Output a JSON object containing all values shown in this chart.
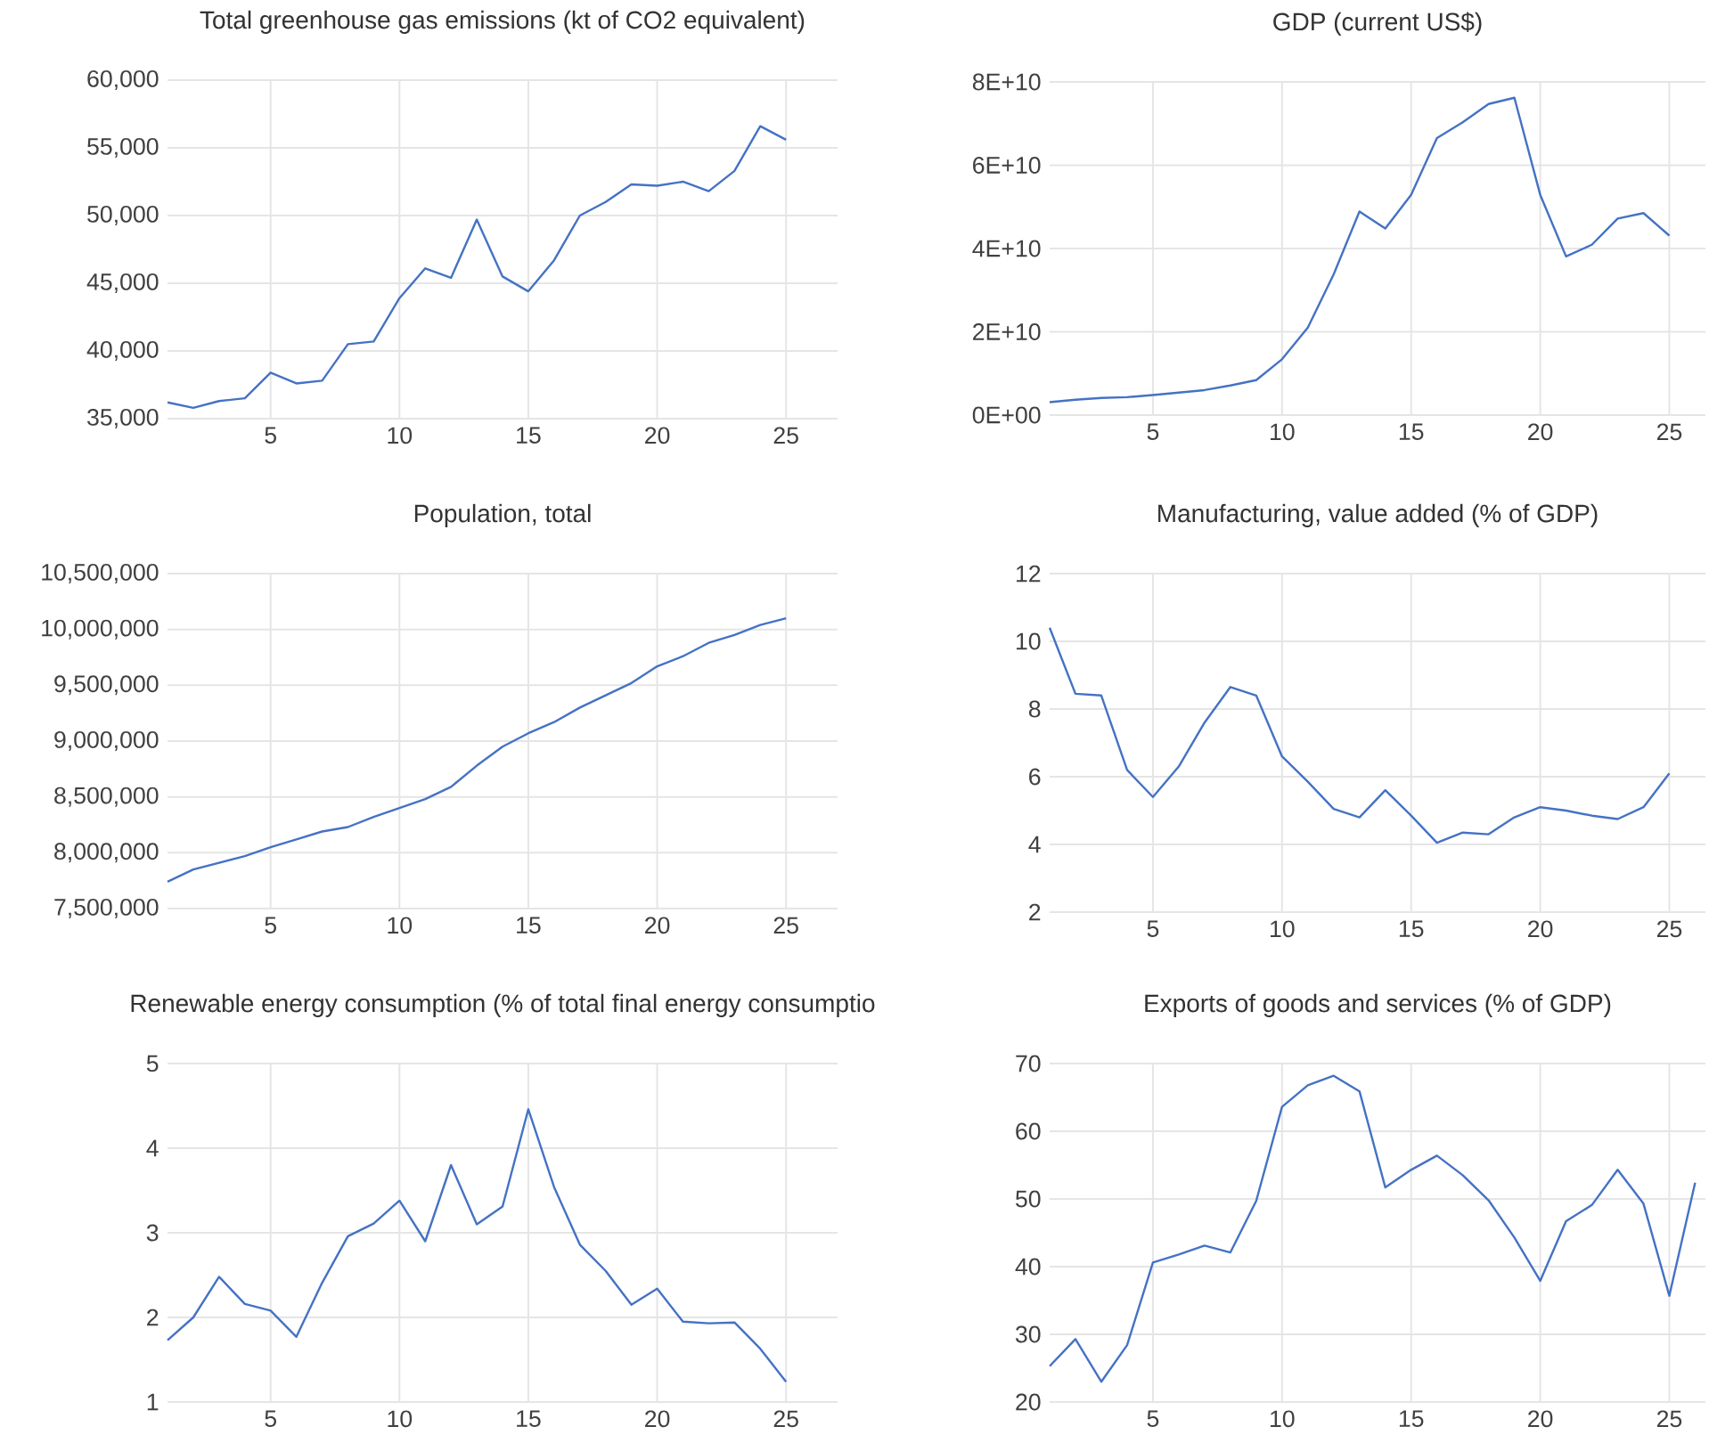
{
  "chart_data": [
    {
      "type": "line",
      "title": "Total greenhouse gas emissions (kt of CO2 equivalent)",
      "x": [
        1,
        2,
        3,
        4,
        5,
        6,
        7,
        8,
        9,
        10,
        11,
        12,
        13,
        14,
        15,
        16,
        17,
        18,
        19,
        20,
        21,
        22,
        23,
        24,
        25
      ],
      "series": [
        {
          "color": "#4472c4",
          "values": [
            36200,
            35800,
            36300,
            36500,
            38400,
            37600,
            37800,
            40500,
            40700,
            43900,
            46100,
            45400,
            49700,
            45500,
            44400,
            46700,
            50000,
            51000,
            52300,
            52200,
            52500,
            51800,
            53300,
            56600,
            55600
          ]
        }
      ],
      "xlim": [
        1,
        27
      ],
      "xticks": [
        5,
        10,
        15,
        20,
        25
      ],
      "ylim": [
        35000,
        60000
      ],
      "yticks": [
        {
          "value": 35000,
          "label": "35,000"
        },
        {
          "value": 40000,
          "label": "40,000"
        },
        {
          "value": 45000,
          "label": "45,000"
        },
        {
          "value": 50000,
          "label": "50,000"
        },
        {
          "value": 55000,
          "label": "55,000"
        },
        {
          "value": 60000,
          "label": "60,000"
        }
      ],
      "grid": true
    },
    {
      "type": "line",
      "title": "GDP (current US$)",
      "x": [
        1,
        2,
        3,
        4,
        5,
        6,
        7,
        8,
        9,
        10,
        11,
        12,
        13,
        14,
        15,
        16,
        17,
        18,
        19,
        20,
        21,
        22,
        23,
        24,
        25
      ],
      "series": [
        {
          "color": "#4472c4",
          "values": [
            3100000000.0,
            3700000000.0,
            4100000000.0,
            4300000000.0,
            4800000000.0,
            5400000000.0,
            6000000000.0,
            7100000000.0,
            8400000000.0,
            13400000000.0,
            21000000000.0,
            33800000000.0,
            48900000000.0,
            44800000000.0,
            52900000000.0,
            66500000000.0,
            70300000000.0,
            74700000000.0,
            76200000000.0,
            52900000000.0,
            38100000000.0,
            40900000000.0,
            47200000000.0,
            48500000000.0,
            43100000000.0
          ]
        }
      ],
      "xlim": [
        1,
        26.4
      ],
      "xticks": [
        5,
        10,
        15,
        20,
        25
      ],
      "ylim": [
        0,
        80000000000.0
      ],
      "yticks": [
        {
          "value": 0,
          "label": "0E+00"
        },
        {
          "value": 20000000000.0,
          "label": "2E+10"
        },
        {
          "value": 40000000000.0,
          "label": "4E+10"
        },
        {
          "value": 60000000000.0,
          "label": "6E+10"
        },
        {
          "value": 80000000000.0,
          "label": "8E+10"
        }
      ],
      "grid": true
    },
    {
      "type": "line",
      "title": "Population, total",
      "x": [
        1,
        2,
        3,
        4,
        5,
        6,
        7,
        8,
        9,
        10,
        11,
        12,
        13,
        14,
        15,
        16,
        17,
        18,
        19,
        20,
        21,
        22,
        23,
        24,
        25
      ],
      "series": [
        {
          "color": "#4472c4",
          "values": [
            7740000,
            7850000,
            7910000,
            7970000,
            8050000,
            8120000,
            8190000,
            8230000,
            8320000,
            8400000,
            8480000,
            8590000,
            8780000,
            8950000,
            9070000,
            9170000,
            9300000,
            9410000,
            9520000,
            9670000,
            9760000,
            9880000,
            9950000,
            10040000,
            10100000
          ]
        }
      ],
      "xlim": [
        1,
        27
      ],
      "xticks": [
        5,
        10,
        15,
        20,
        25
      ],
      "ylim": [
        7500000,
        10500000
      ],
      "yticks": [
        {
          "value": 7500000,
          "label": "7,500,000"
        },
        {
          "value": 8000000,
          "label": "8,000,000"
        },
        {
          "value": 8500000,
          "label": "8,500,000"
        },
        {
          "value": 9000000,
          "label": "9,000,000"
        },
        {
          "value": 9500000,
          "label": "9,500,000"
        },
        {
          "value": 10000000,
          "label": "10,000,000"
        },
        {
          "value": 10500000,
          "label": "10,500,000"
        }
      ],
      "grid": true
    },
    {
      "type": "line",
      "title": "Manufacturing, value added (% of GDP)",
      "x": [
        1,
        2,
        3,
        4,
        5,
        6,
        7,
        8,
        9,
        10,
        11,
        12,
        13,
        14,
        15,
        16,
        17,
        18,
        19,
        20,
        21,
        22,
        23,
        24,
        25
      ],
      "series": [
        {
          "color": "#4472c4",
          "values": [
            10.4,
            8.45,
            8.4,
            6.2,
            5.4,
            6.3,
            7.6,
            8.65,
            8.4,
            6.6,
            5.85,
            5.05,
            4.8,
            5.6,
            4.85,
            4.05,
            4.35,
            4.3,
            4.8,
            5.1,
            5.0,
            4.85,
            4.75,
            5.1,
            6.1
          ]
        }
      ],
      "xlim": [
        1,
        26.4
      ],
      "xticks": [
        5,
        10,
        15,
        20,
        25
      ],
      "ylim": [
        2,
        12
      ],
      "yticks": [
        2,
        4,
        6,
        8,
        10,
        12
      ],
      "grid": true
    },
    {
      "type": "line",
      "title": "Renewable energy consumption (% of total final energy consumptio",
      "x": [
        1,
        2,
        3,
        4,
        5,
        6,
        7,
        8,
        9,
        10,
        11,
        12,
        13,
        14,
        15,
        16,
        17,
        18,
        19,
        20,
        21,
        22,
        23,
        24,
        25
      ],
      "series": [
        {
          "color": "#4472c4",
          "values": [
            1.73,
            2.0,
            2.48,
            2.16,
            2.08,
            1.77,
            2.41,
            2.96,
            3.11,
            3.38,
            2.9,
            3.8,
            3.1,
            3.31,
            4.46,
            3.54,
            2.86,
            2.55,
            2.15,
            2.34,
            1.95,
            1.93,
            1.94,
            1.63,
            1.24
          ]
        }
      ],
      "xlim": [
        1,
        27
      ],
      "xticks": [
        5,
        10,
        15,
        20,
        25
      ],
      "ylim": [
        1,
        5
      ],
      "yticks": [
        1,
        2,
        3,
        4,
        5
      ],
      "grid": true
    },
    {
      "type": "line",
      "title": "Exports of goods and services (% of GDP)",
      "x": [
        1,
        2,
        3,
        4,
        5,
        6,
        7,
        8,
        9,
        10,
        11,
        12,
        13,
        14,
        15,
        16,
        17,
        18,
        19,
        20,
        21,
        22,
        23,
        24,
        25,
        26
      ],
      "series": [
        {
          "color": "#4472c4",
          "values": [
            25.3,
            29.3,
            23.0,
            28.4,
            40.6,
            41.8,
            43.1,
            42.1,
            49.7,
            63.6,
            66.8,
            68.2,
            65.9,
            51.7,
            54.3,
            56.4,
            53.5,
            49.8,
            44.3,
            37.9,
            46.7,
            49.1,
            54.3,
            49.3,
            35.7,
            52.4
          ]
        }
      ],
      "xlim": [
        1,
        26.4
      ],
      "xticks": [
        5,
        10,
        15,
        20,
        25
      ],
      "ylim": [
        20,
        70
      ],
      "yticks": [
        20,
        30,
        40,
        50,
        60,
        70
      ],
      "grid": true
    }
  ]
}
